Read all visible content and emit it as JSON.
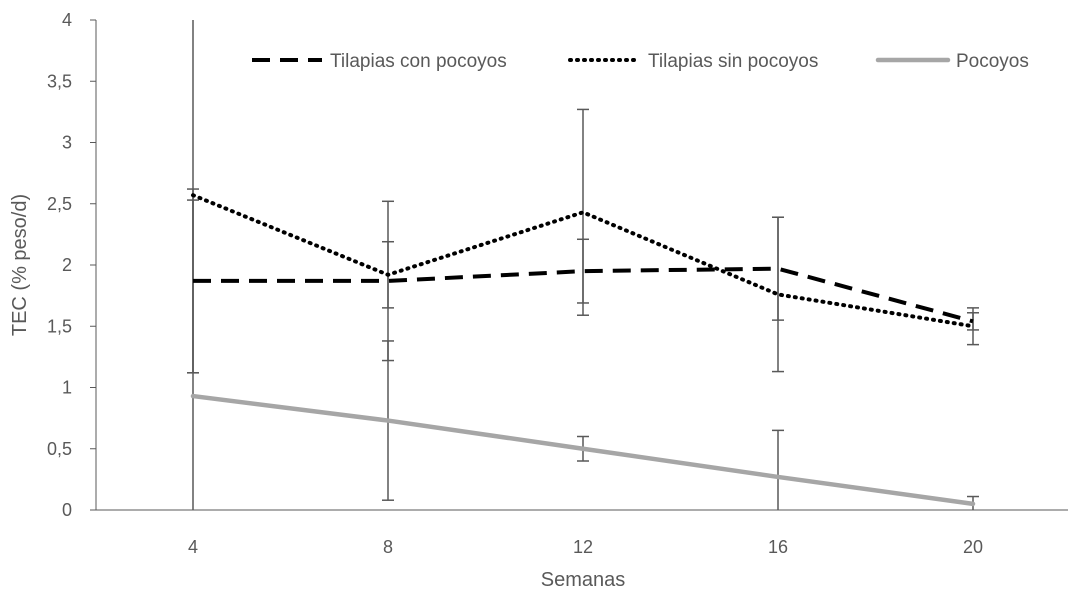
{
  "chart_data": {
    "type": "line",
    "title": "",
    "xlabel": "Semanas",
    "ylabel": "TEC (% peso/d)",
    "categories": [
      "4",
      "8",
      "12",
      "16",
      "20"
    ],
    "y_tick_labels": [
      "0",
      "0,5",
      "1",
      "1,5",
      "2",
      "2,5",
      "3",
      "3,5",
      "4"
    ],
    "ylim": [
      0,
      4
    ],
    "grid": false,
    "legend_position": "top",
    "series": [
      {
        "name": "Tilapias con pocoyos",
        "style": "dashed",
        "color": "#000000",
        "values": [
          1.87,
          1.87,
          1.95,
          1.97,
          1.54
        ],
        "error": [
          0.75,
          0.65,
          0.26,
          0.42,
          0.07
        ]
      },
      {
        "name": "Tilapias sin pocoyos",
        "style": "dotted",
        "color": "#000000",
        "values": [
          2.57,
          1.92,
          2.43,
          1.76,
          1.5
        ],
        "error": [
          1.45,
          0.27,
          0.84,
          0.63,
          0.15
        ]
      },
      {
        "name": "Pocoyos",
        "style": "solid",
        "color": "#a6a6a6",
        "values": [
          0.93,
          0.73,
          0.5,
          0.27,
          0.05
        ],
        "error": [
          1.6,
          0.65,
          0.1,
          0.38,
          0.06
        ]
      }
    ]
  }
}
